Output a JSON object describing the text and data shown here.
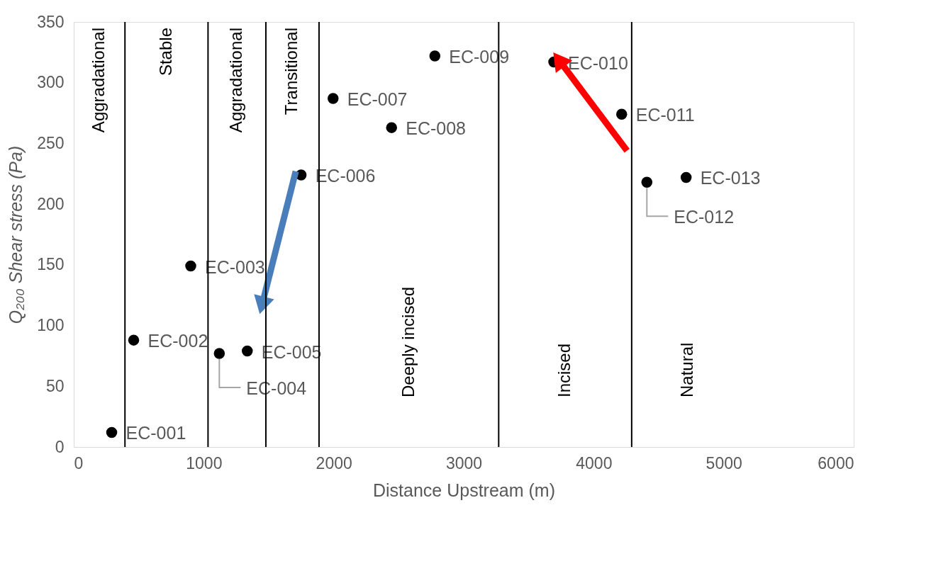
{
  "chart_data": {
    "type": "scatter",
    "xlabel": "Distance Upstream (m)",
    "ylabel": "Q₂₀₀ Shear stress (Pa)",
    "xlim": [
      0,
      6000
    ],
    "xticks": [
      0,
      1000,
      2000,
      3000,
      4000,
      5000,
      6000
    ],
    "ylim": [
      0,
      350
    ],
    "yticks": [
      0,
      50,
      100,
      150,
      200,
      250,
      300,
      350
    ],
    "grid": false,
    "marker": "circle",
    "series": [
      {
        "color": "#000000",
        "x": [
          292,
          461,
          900,
          1120,
          1335,
          1749,
          1995,
          2445,
          2778,
          3693,
          4215,
          4409,
          4711
        ],
        "values": [
          12,
          88,
          149,
          77,
          79,
          224,
          287,
          263,
          322,
          317,
          274,
          218,
          222
        ],
        "value_labels": [
          "EC-001",
          "EC-002",
          "EC-003",
          "EC-004",
          "EC-005",
          "EC-006",
          "EC-007",
          "EC-008",
          "EC-009",
          "EC-010",
          "EC-011",
          "EC-012",
          "EC-013"
        ]
      },
      {
        "type": "line",
        "marker": "triangle",
        "color": "#ff0000",
        "x": [
          4256,
          3744
        ],
        "values": [
          244,
          317
        ]
      },
      {
        "type": "line",
        "marker": "triangle",
        "color": "#4a7ebb",
        "x": [
          1708,
          1453
        ],
        "values": [
          227,
          119
        ]
      }
    ],
    "ref_lines": [
      {
        "axis": "x",
        "value": 394
      },
      {
        "axis": "x",
        "value": 1033
      },
      {
        "axis": "x",
        "value": 1478
      },
      {
        "axis": "x",
        "value": 1887
      },
      {
        "axis": "x",
        "value": 3269
      },
      {
        "axis": "x",
        "value": 4292
      }
    ],
    "annotations": [
      "Aggradational",
      "Stable",
      "Aggradational",
      "Transitional",
      "Deeply incised",
      "Incised",
      "Natural"
    ]
  }
}
